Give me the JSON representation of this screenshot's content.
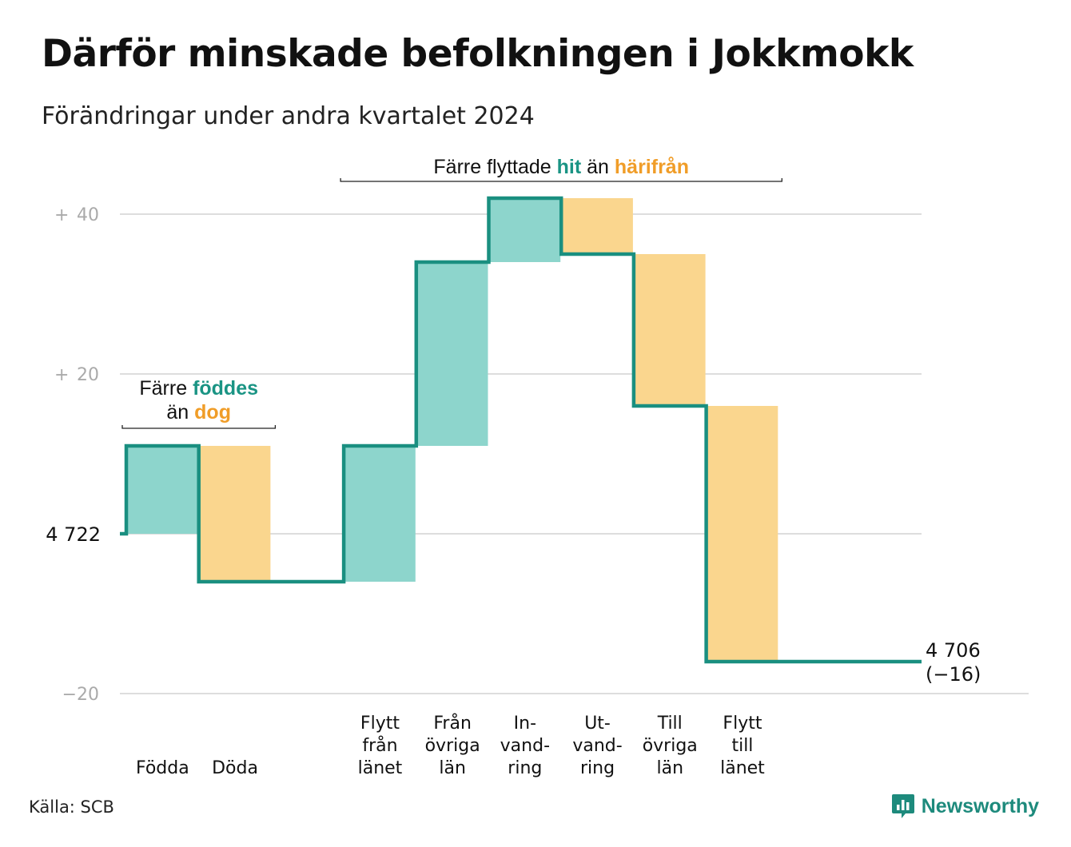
{
  "title": "Därför minskade befolkningen i Jokkmokk",
  "subtitle": "Förändringar under andra kvartalet 2024",
  "source": "Källa: SCB",
  "brand": "Newsworthy",
  "brand_icon": "newsworthy-logo-icon",
  "colors": {
    "increase": "#8dd5cc",
    "decrease": "#fad68e",
    "line": "#1a8f80",
    "hit_text": "#1a9484",
    "away_text": "#f09d28",
    "grid": "#dddddd",
    "tick_text": "#aaaaaa"
  },
  "chart_data": {
    "type": "waterfall",
    "start_value": 4722,
    "start_label": "4 722",
    "end_value": 4706,
    "end_label": "4 706",
    "end_change_label": "(−16)",
    "ylim": [
      -20,
      40
    ],
    "yticks": [
      {
        "value": 40,
        "sign": "+",
        "num": "40"
      },
      {
        "value": 20,
        "sign": "+",
        "num": "20"
      },
      {
        "value": 0,
        "label": "4 722"
      },
      {
        "value": -20,
        "num": "−20"
      }
    ],
    "grid": true,
    "steps": [
      {
        "label": [
          "Födda"
        ],
        "change": 11,
        "kind": "increase"
      },
      {
        "label": [
          "Döda"
        ],
        "change": -17,
        "kind": "decrease"
      },
      {
        "label": [],
        "change": 0,
        "kind": "blank"
      },
      {
        "label": [
          "Flytt",
          "från",
          "länet"
        ],
        "change": 17,
        "kind": "increase"
      },
      {
        "label": [
          "Från",
          "övriga",
          "län"
        ],
        "change": 23,
        "kind": "increase"
      },
      {
        "label": [
          "In-",
          "vand-",
          "ring"
        ],
        "change": 8,
        "kind": "increase"
      },
      {
        "label": [
          "Ut-",
          "vand-",
          "ring"
        ],
        "change": -7,
        "kind": "decrease"
      },
      {
        "label": [
          "Till",
          "övriga",
          "län"
        ],
        "change": -19,
        "kind": "decrease"
      },
      {
        "label": [
          "Flytt",
          "till",
          "länet"
        ],
        "change": -32,
        "kind": "decrease"
      }
    ],
    "annotations": [
      {
        "parts": [
          {
            "text": "Färre ",
            "style": "plain"
          },
          {
            "text": "föddes",
            "style": "hit"
          }
        ],
        "parts2": [
          {
            "text": "än ",
            "style": "plain"
          },
          {
            "text": "dog",
            "style": "away"
          }
        ],
        "from": 0,
        "to": 1
      },
      {
        "parts": [
          {
            "text": "Färre flyttade ",
            "style": "plain"
          },
          {
            "text": "hit",
            "style": "hit"
          },
          {
            "text": " än ",
            "style": "plain"
          },
          {
            "text": "härifrån",
            "style": "away"
          }
        ],
        "from": 3,
        "to": 8
      }
    ]
  }
}
